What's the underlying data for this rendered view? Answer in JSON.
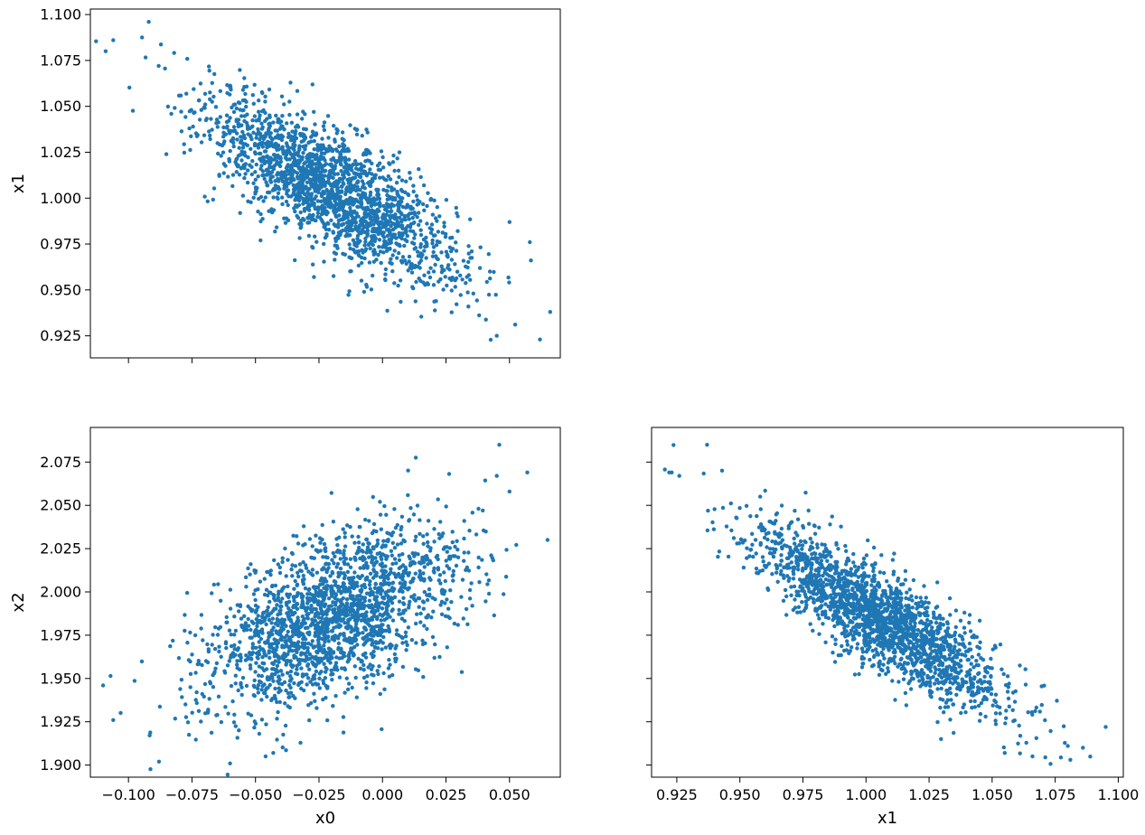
{
  "chart_data": [
    {
      "type": "scatter",
      "panel": "x0-x1",
      "xlabel": "",
      "ylabel": "x1",
      "xlim": [
        -0.115,
        0.07
      ],
      "ylim": [
        0.913,
        1.103
      ],
      "xticks": [
        -0.1,
        -0.075,
        -0.05,
        -0.025,
        0.0,
        0.025,
        0.05
      ],
      "xtick_labels_visible": false,
      "yticks": [
        0.925,
        0.95,
        0.975,
        1.0,
        1.025,
        1.05,
        1.075,
        1.1
      ],
      "ytick_labels": [
        "0.925",
        "0.950",
        "0.975",
        "1.000",
        "1.025",
        "1.050",
        "1.075",
        "1.100"
      ],
      "color": "#1f77b4",
      "distribution": {
        "n": 2000,
        "x_mean": -0.02,
        "x_std": 0.025,
        "y_mean": 1.005,
        "y_std": 0.025,
        "corr": -0.78
      },
      "points": [
        [
          -0.092,
          1.096
        ],
        [
          -0.109,
          1.08
        ],
        [
          -0.106,
          1.086
        ],
        [
          0.062,
          0.923
        ],
        [
          0.066,
          0.938
        ],
        [
          0.045,
          0.925
        ],
        [
          0.058,
          0.976
        ],
        [
          0.05,
          0.987
        ],
        [
          -0.048,
          0.977
        ],
        [
          -0.027,
          0.957
        ]
      ]
    },
    {
      "type": "scatter",
      "panel": "x0-x2",
      "xlabel": "x0",
      "ylabel": "x2",
      "xlim": [
        -0.115,
        0.07
      ],
      "ylim": [
        1.893,
        2.095
      ],
      "xticks": [
        -0.1,
        -0.075,
        -0.05,
        -0.025,
        0.0,
        0.025,
        0.05
      ],
      "xtick_labels": [
        "−0.100",
        "−0.075",
        "−0.050",
        "−0.025",
        "0.000",
        "0.025",
        "0.050"
      ],
      "yticks": [
        1.9,
        1.925,
        1.95,
        1.975,
        2.0,
        2.025,
        2.05,
        2.075
      ],
      "ytick_labels": [
        "1.900",
        "1.925",
        "1.950",
        "1.975",
        "2.000",
        "2.025",
        "2.050",
        "2.075"
      ],
      "color": "#1f77b4",
      "distribution": {
        "n": 2000,
        "x_mean": -0.02,
        "x_std": 0.025,
        "y_mean": 1.985,
        "y_std": 0.027,
        "corr": 0.55
      },
      "points": [
        [
          -0.11,
          1.946
        ],
        [
          -0.106,
          1.926
        ],
        [
          0.046,
          2.085
        ],
        [
          0.065,
          2.03
        ],
        [
          -0.088,
          1.902
        ],
        [
          -0.043,
          1.907
        ],
        [
          -0.046,
          1.905
        ],
        [
          0.057,
          2.069
        ],
        [
          0.045,
          2.067
        ],
        [
          0.05,
          2.058
        ]
      ]
    },
    {
      "type": "scatter",
      "panel": "x1-x2",
      "xlabel": "x1",
      "ylabel": "",
      "xlim": [
        0.915,
        1.102
      ],
      "ylim": [
        1.893,
        2.095
      ],
      "xticks": [
        0.925,
        0.95,
        0.975,
        1.0,
        1.025,
        1.05,
        1.075,
        1.1
      ],
      "xtick_labels": [
        "0.925",
        "0.950",
        "0.975",
        "1.000",
        "1.025",
        "1.050",
        "1.075",
        "1.100"
      ],
      "yticks": [
        1.9,
        1.925,
        1.95,
        1.975,
        2.0,
        2.025,
        2.05,
        2.075
      ],
      "ytick_labels_visible": false,
      "color": "#1f77b4",
      "distribution": {
        "n": 2000,
        "x_mean": 1.005,
        "x_std": 0.025,
        "y_mean": 1.985,
        "y_std": 0.027,
        "corr": -0.85
      },
      "points": [
        [
          0.937,
          2.085
        ],
        [
          0.922,
          2.069
        ],
        [
          0.926,
          2.067
        ],
        [
          1.095,
          1.922
        ],
        [
          1.081,
          1.903
        ],
        [
          1.086,
          1.91
        ],
        [
          1.066,
          1.905
        ],
        [
          1.055,
          1.907
        ],
        [
          0.923,
          2.069
        ],
        [
          1.08,
          1.911
        ]
      ]
    }
  ]
}
